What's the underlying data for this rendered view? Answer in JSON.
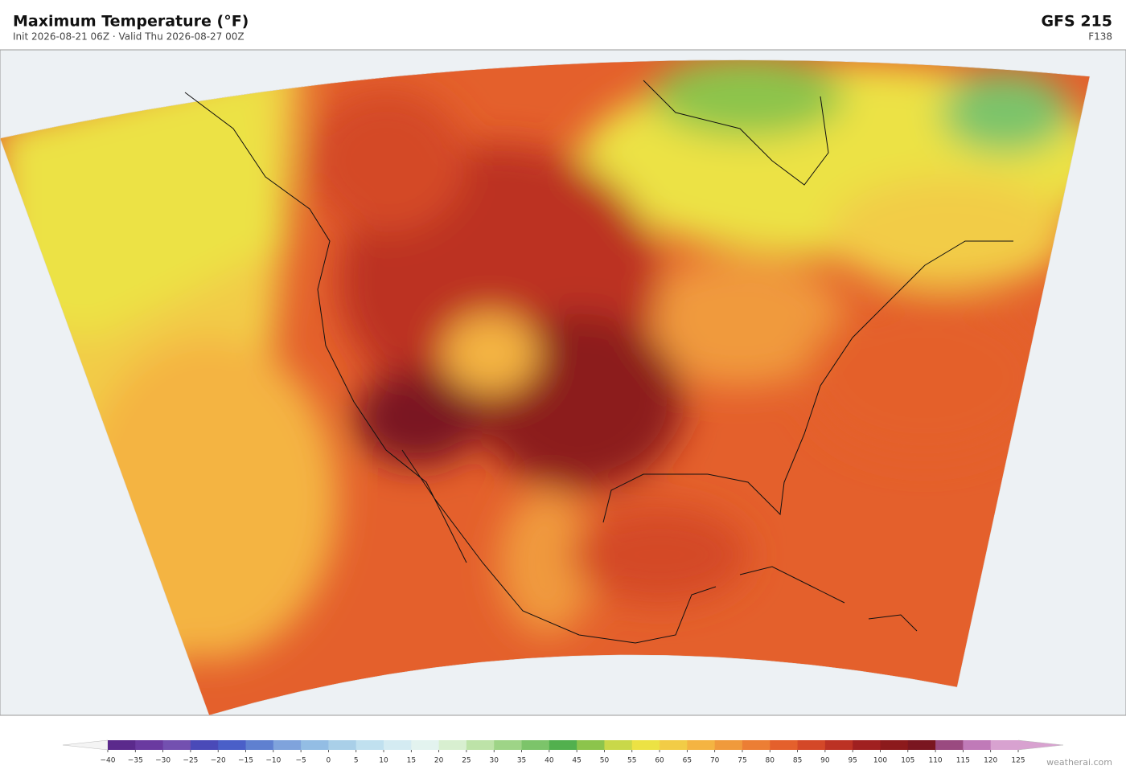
{
  "header": {
    "title": "Maximum Temperature  (°F)",
    "subtitle": "Init 2026-08-21 06Z  ·  Valid Thu 2026-08-27 00Z",
    "model": "GFS  215",
    "forecast_hour": "F138"
  },
  "colorbar": {
    "ticks": [
      {
        "value": -40,
        "label": "−40"
      },
      {
        "value": -35,
        "label": "−35"
      },
      {
        "value": -30,
        "label": "−30"
      },
      {
        "value": -25,
        "label": "−25"
      },
      {
        "value": -20,
        "label": "−20"
      },
      {
        "value": -15,
        "label": "−15"
      },
      {
        "value": -10,
        "label": "−10"
      },
      {
        "value": -5,
        "label": "−5"
      },
      0,
      5,
      10,
      15,
      20,
      25,
      30,
      35,
      40,
      45,
      50,
      55,
      60,
      65,
      70,
      75,
      80,
      85,
      90,
      95,
      100,
      105,
      110,
      115,
      120,
      125
    ],
    "colors": [
      "#5b2a8c",
      "#6a3aa0",
      "#7350b0",
      "#4a4ab8",
      "#4a5fc8",
      "#5f80d0",
      "#7fa3dc",
      "#93bde4",
      "#a9cfe8",
      "#c0e0ef",
      "#d4ebf2",
      "#e3f3ef",
      "#d8efd0",
      "#bde3a8",
      "#9ed487",
      "#7cc46a",
      "#52b04e",
      "#8cc44c",
      "#c9d849",
      "#ece244",
      "#f2cc46",
      "#f4b442",
      "#f09a3c",
      "#ec7e34",
      "#e4602c",
      "#d44828",
      "#bc3224",
      "#a02020",
      "#8c1a1c",
      "#7a1620",
      "#9a4a80",
      "#c07ab8",
      "#d8a2d0"
    ],
    "under_color": "#f4f4f4",
    "over_color": "#d8a2d0"
  },
  "footer": {
    "credit": "weatherai.com"
  }
}
